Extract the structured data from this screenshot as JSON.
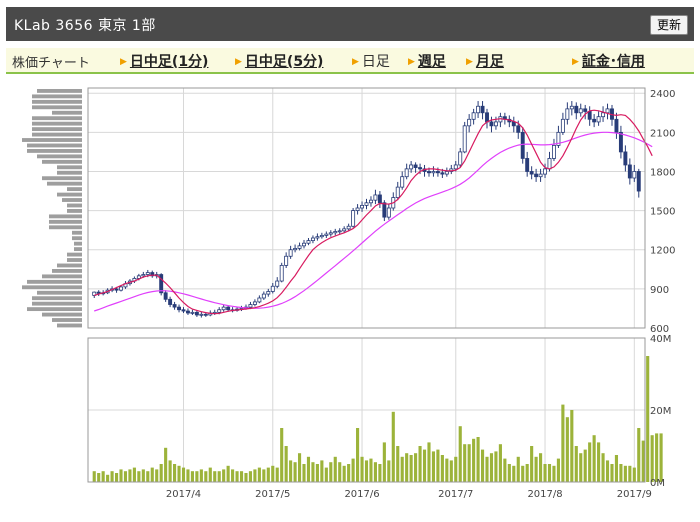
{
  "header": {
    "title": "KLab  3656  東京 1部",
    "refresh_label": "更新"
  },
  "nav": {
    "label": "株価チャート",
    "items": [
      {
        "label": "日中足(1分)",
        "current": false
      },
      {
        "label": "日中足(5分)",
        "current": false
      },
      {
        "label": "日足",
        "current": true
      },
      {
        "label": "週足",
        "current": false
      },
      {
        "label": "月足",
        "current": false
      },
      {
        "label": "証金･信用",
        "current": false
      }
    ]
  },
  "colors": {
    "candle": "#283c78",
    "ma_short": "#d81b60",
    "ma_long": "#e040fb",
    "volume": "#9cb33a",
    "volume_profile": "#9e9e9e",
    "grid": "#d8d8d8",
    "nav_accent": "#8bc34a"
  },
  "chart_data": [
    {
      "type": "candlestick",
      "name": "price",
      "y_ticks": [
        600,
        900,
        1200,
        1500,
        1800,
        2100,
        2400
      ],
      "ylim": [
        600,
        2440
      ],
      "x_ticks": [
        "2017/4",
        "2017/5",
        "2017/6",
        "2017/7",
        "2017/8",
        "2017/9"
      ],
      "x_tick_index": [
        20,
        40,
        60,
        81,
        101,
        121
      ],
      "candles": [
        [
          850,
          875,
          830,
          880
        ],
        [
          875,
          865,
          845,
          890
        ],
        [
          865,
          870,
          850,
          890
        ],
        [
          870,
          890,
          860,
          905
        ],
        [
          890,
          900,
          875,
          920
        ],
        [
          900,
          890,
          870,
          915
        ],
        [
          890,
          915,
          880,
          930
        ],
        [
          915,
          940,
          900,
          960
        ],
        [
          940,
          960,
          925,
          975
        ],
        [
          960,
          980,
          945,
          995
        ],
        [
          980,
          1000,
          965,
          1015
        ],
        [
          1000,
          1010,
          985,
          1030
        ],
        [
          1010,
          1025,
          990,
          1045
        ],
        [
          1025,
          1000,
          985,
          1040
        ],
        [
          1000,
          1010,
          980,
          1030
        ],
        [
          1010,
          870,
          850,
          1020
        ],
        [
          870,
          820,
          800,
          890
        ],
        [
          820,
          780,
          760,
          840
        ],
        [
          780,
          760,
          740,
          800
        ],
        [
          760,
          740,
          720,
          780
        ],
        [
          740,
          730,
          715,
          760
        ],
        [
          730,
          715,
          700,
          750
        ],
        [
          715,
          720,
          700,
          740
        ],
        [
          720,
          700,
          685,
          735
        ],
        [
          700,
          705,
          680,
          725
        ],
        [
          705,
          700,
          685,
          720
        ],
        [
          700,
          715,
          690,
          735
        ],
        [
          715,
          720,
          700,
          740
        ],
        [
          720,
          740,
          705,
          760
        ],
        [
          740,
          760,
          725,
          780
        ],
        [
          760,
          740,
          725,
          775
        ],
        [
          740,
          735,
          720,
          760
        ],
        [
          735,
          745,
          725,
          765
        ],
        [
          745,
          750,
          730,
          770
        ],
        [
          750,
          760,
          740,
          780
        ],
        [
          760,
          780,
          745,
          800
        ],
        [
          780,
          800,
          765,
          820
        ],
        [
          800,
          830,
          790,
          850
        ],
        [
          830,
          860,
          815,
          880
        ],
        [
          860,
          880,
          840,
          900
        ],
        [
          880,
          920,
          865,
          945
        ],
        [
          920,
          960,
          905,
          990
        ],
        [
          960,
          1080,
          950,
          1100
        ],
        [
          1080,
          1150,
          1060,
          1180
        ],
        [
          1150,
          1200,
          1130,
          1230
        ],
        [
          1200,
          1210,
          1180,
          1240
        ],
        [
          1210,
          1230,
          1195,
          1255
        ],
        [
          1230,
          1250,
          1210,
          1275
        ],
        [
          1250,
          1270,
          1235,
          1290
        ],
        [
          1270,
          1290,
          1250,
          1310
        ],
        [
          1290,
          1300,
          1270,
          1325
        ],
        [
          1300,
          1310,
          1285,
          1330
        ],
        [
          1310,
          1320,
          1290,
          1340
        ],
        [
          1320,
          1330,
          1300,
          1350
        ],
        [
          1330,
          1340,
          1310,
          1360
        ],
        [
          1340,
          1345,
          1320,
          1365
        ],
        [
          1345,
          1360,
          1330,
          1380
        ],
        [
          1360,
          1380,
          1340,
          1400
        ],
        [
          1380,
          1500,
          1370,
          1520
        ],
        [
          1500,
          1520,
          1470,
          1550
        ],
        [
          1520,
          1540,
          1490,
          1570
        ],
        [
          1540,
          1560,
          1510,
          1590
        ],
        [
          1560,
          1580,
          1530,
          1610
        ],
        [
          1580,
          1620,
          1550,
          1660
        ],
        [
          1620,
          1560,
          1520,
          1650
        ],
        [
          1560,
          1450,
          1420,
          1580
        ],
        [
          1450,
          1520,
          1430,
          1550
        ],
        [
          1520,
          1600,
          1500,
          1640
        ],
        [
          1600,
          1680,
          1580,
          1720
        ],
        [
          1680,
          1760,
          1660,
          1800
        ],
        [
          1760,
          1820,
          1740,
          1860
        ],
        [
          1820,
          1850,
          1790,
          1880
        ],
        [
          1850,
          1830,
          1790,
          1870
        ],
        [
          1830,
          1820,
          1780,
          1860
        ],
        [
          1820,
          1800,
          1760,
          1850
        ],
        [
          1800,
          1790,
          1760,
          1830
        ],
        [
          1790,
          1800,
          1760,
          1840
        ],
        [
          1800,
          1790,
          1760,
          1830
        ],
        [
          1790,
          1780,
          1750,
          1820
        ],
        [
          1780,
          1800,
          1760,
          1830
        ],
        [
          1800,
          1820,
          1780,
          1850
        ],
        [
          1820,
          1850,
          1800,
          1880
        ],
        [
          1850,
          1950,
          1830,
          1980
        ],
        [
          1950,
          2150,
          1940,
          2180
        ],
        [
          2150,
          2200,
          2100,
          2240
        ],
        [
          2200,
          2250,
          2160,
          2280
        ],
        [
          2250,
          2300,
          2210,
          2340
        ],
        [
          2300,
          2250,
          2200,
          2340
        ],
        [
          2250,
          2180,
          2130,
          2280
        ],
        [
          2180,
          2150,
          2100,
          2220
        ],
        [
          2150,
          2180,
          2120,
          2220
        ],
        [
          2180,
          2220,
          2140,
          2250
        ],
        [
          2220,
          2200,
          2160,
          2250
        ],
        [
          2200,
          2180,
          2140,
          2230
        ],
        [
          2180,
          2150,
          2100,
          2220
        ],
        [
          2150,
          2100,
          2050,
          2190
        ],
        [
          2100,
          1900,
          1860,
          2140
        ],
        [
          1900,
          1800,
          1760,
          1950
        ],
        [
          1800,
          1780,
          1740,
          1840
        ],
        [
          1780,
          1760,
          1720,
          1820
        ],
        [
          1760,
          1780,
          1720,
          1820
        ],
        [
          1780,
          1820,
          1750,
          1860
        ],
        [
          1820,
          1900,
          1800,
          1950
        ],
        [
          1900,
          2000,
          1880,
          2050
        ],
        [
          2000,
          2100,
          1980,
          2150
        ],
        [
          2100,
          2200,
          2080,
          2250
        ],
        [
          2200,
          2280,
          2160,
          2330
        ],
        [
          2280,
          2300,
          2230,
          2340
        ],
        [
          2300,
          2250,
          2200,
          2330
        ],
        [
          2250,
          2280,
          2220,
          2320
        ],
        [
          2280,
          2260,
          2200,
          2310
        ],
        [
          2260,
          2200,
          2150,
          2300
        ],
        [
          2200,
          2180,
          2140,
          2240
        ],
        [
          2180,
          2220,
          2150,
          2260
        ],
        [
          2220,
          2250,
          2180,
          2300
        ],
        [
          2250,
          2280,
          2200,
          2320
        ],
        [
          2280,
          2200,
          2150,
          2310
        ],
        [
          2200,
          2100,
          2050,
          2250
        ],
        [
          2100,
          1950,
          1900,
          2150
        ],
        [
          1950,
          1850,
          1800,
          2000
        ],
        [
          1850,
          1750,
          1700,
          1900
        ],
        [
          1750,
          1800,
          1720,
          1850
        ],
        [
          1800,
          1650,
          1600,
          1820
        ]
      ],
      "ma_short": [
        850,
        860,
        870,
        880,
        895,
        910,
        925,
        940,
        950,
        960,
        975,
        990,
        1000,
        1005,
        1005,
        975,
        945,
        910,
        870,
        830,
        795,
        765,
        745,
        735,
        725,
        718,
        712,
        710,
        712,
        720,
        728,
        735,
        738,
        742,
        746,
        750,
        756,
        764,
        776,
        790,
        808,
        832,
        868,
        912,
        958,
        1002,
        1054,
        1105,
        1156,
        1200,
        1230,
        1255,
        1275,
        1292,
        1305,
        1318,
        1330,
        1345,
        1362,
        1390,
        1428,
        1466,
        1500,
        1535,
        1555,
        1552,
        1550,
        1560,
        1585,
        1625,
        1675,
        1730,
        1770,
        1800,
        1815,
        1820,
        1820,
        1815,
        1810,
        1805,
        1805,
        1810,
        1830,
        1880,
        1950,
        2020,
        2090,
        2150,
        2180,
        2195,
        2200,
        2205,
        2200,
        2195,
        2185,
        2170,
        2135,
        2080,
        2010,
        1940,
        1870,
        1830,
        1820,
        1835,
        1870,
        1920,
        1985,
        2055,
        2130,
        2195,
        2240,
        2265,
        2270,
        2265,
        2255,
        2245,
        2235,
        2230,
        2235,
        2230,
        2200,
        2160,
        2110,
        2050,
        1990,
        1920
      ],
      "ma_long": [
        730,
        742,
        755,
        768,
        780,
        792,
        804,
        816,
        828,
        840,
        852,
        863,
        872,
        879,
        884,
        886,
        885,
        882,
        877,
        870,
        862,
        853,
        843,
        832,
        822,
        812,
        803,
        794,
        786,
        779,
        772,
        766,
        761,
        757,
        754,
        752,
        751,
        752,
        755,
        760,
        767,
        776,
        788,
        803,
        820,
        840,
        862,
        886,
        912,
        938,
        966,
        994,
        1022,
        1050,
        1078,
        1106,
        1134,
        1162,
        1192,
        1222,
        1252,
        1282,
        1312,
        1342,
        1370,
        1396,
        1420,
        1444,
        1468,
        1492,
        1516,
        1538,
        1558,
        1576,
        1592,
        1606,
        1618,
        1630,
        1642,
        1654,
        1668,
        1684,
        1702,
        1724,
        1750,
        1780,
        1812,
        1844,
        1874,
        1900,
        1924,
        1946,
        1964,
        1980,
        1992,
        2002,
        2008,
        2010,
        2008,
        2006,
        2004,
        2004,
        2006,
        2010,
        2016,
        2024,
        2034,
        2046,
        2058,
        2070,
        2080,
        2088,
        2094,
        2098,
        2100,
        2100,
        2098,
        2094,
        2088,
        2080,
        2070,
        2058,
        2044,
        2028,
        2010,
        1990
      ]
    },
    {
      "type": "bar",
      "name": "volume",
      "y_ticks": [
        "0M",
        "20M",
        "40M"
      ],
      "ylim": [
        0,
        40
      ],
      "values": [
        3,
        2.5,
        3,
        2,
        3,
        2.5,
        3.5,
        3,
        3.5,
        4,
        3,
        3.5,
        3,
        4,
        3.5,
        5,
        9.5,
        6,
        5,
        4.5,
        4,
        3.5,
        3,
        3,
        3.5,
        3,
        4,
        3,
        3,
        3.5,
        4.5,
        3.5,
        3,
        3,
        2.5,
        3,
        3.5,
        4,
        3.5,
        4,
        4.5,
        4,
        15,
        10,
        6,
        5.5,
        8,
        5,
        7,
        5.5,
        5,
        6,
        4,
        5.5,
        7,
        5.5,
        4.5,
        5,
        6.5,
        15,
        7,
        6,
        6.5,
        5.5,
        5,
        11,
        6,
        19.5,
        10,
        7,
        8,
        7.5,
        8,
        10,
        9,
        11,
        8.5,
        9,
        7.5,
        6.5,
        6,
        7,
        15.5,
        10.5,
        10.5,
        12,
        12.5,
        9,
        7,
        8,
        8.5,
        10.5,
        6.5,
        5,
        4.5,
        7,
        4.5,
        5,
        10,
        7,
        8,
        5,
        5,
        4.5,
        6.5,
        21.5,
        18,
        20,
        10,
        8,
        9,
        11,
        13,
        11,
        8,
        6,
        5,
        7.5,
        5,
        4.5,
        4.5,
        4,
        15,
        11.5,
        35,
        13,
        13.5,
        13.5
      ]
    },
    {
      "type": "bar",
      "name": "volume_by_price",
      "values": [
        45,
        50,
        50,
        50,
        30,
        50,
        50,
        50,
        50,
        60,
        55,
        55,
        45,
        40,
        25,
        25,
        40,
        35,
        15,
        25,
        20,
        15,
        15,
        33,
        33,
        33,
        10,
        10,
        8,
        8,
        15,
        15,
        25,
        30,
        40,
        55,
        60,
        45,
        50,
        50,
        55,
        40,
        30,
        25
      ]
    }
  ]
}
